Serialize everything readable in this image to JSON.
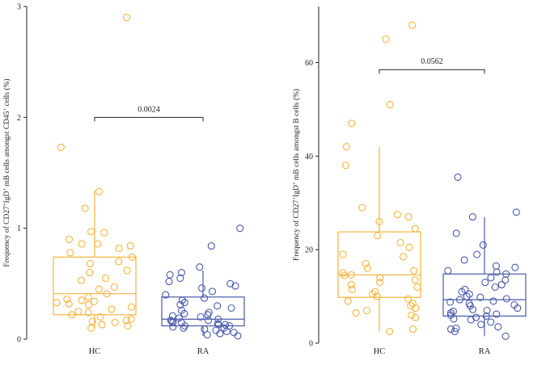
{
  "colors": {
    "hc": "#f5b43a",
    "ra": "#4a5aaa",
    "axis": "#222222"
  },
  "chart_data": [
    {
      "type": "box",
      "ylabel_parts": [
        "Frequency of CD27",
        "+",
        "IgD",
        "+",
        " mB cells amongst CD45",
        "+",
        " cells (%)"
      ],
      "ylim": [
        0,
        3
      ],
      "yticks": [
        "0",
        "1",
        "2",
        "3"
      ],
      "ytick_values": [
        0,
        1,
        2,
        3
      ],
      "categories": [
        "HC",
        "RA"
      ],
      "series": [
        {
          "name": "HC",
          "q1": 0.22,
          "median": 0.41,
          "q3": 0.74,
          "whisker_low": 0.1,
          "whisker_high": 1.34,
          "points": [
            2.9,
            1.73,
            1.33,
            1.18,
            0.97,
            0.96,
            0.9,
            0.86,
            0.86,
            0.84,
            0.82,
            0.78,
            0.74,
            0.7,
            0.68,
            0.62,
            0.6,
            0.55,
            0.53,
            0.47,
            0.45,
            0.41,
            0.38,
            0.36,
            0.35,
            0.34,
            0.33,
            0.32,
            0.31,
            0.29,
            0.27,
            0.25,
            0.24,
            0.22,
            0.2,
            0.18,
            0.17,
            0.16,
            0.15,
            0.13,
            0.12,
            0.1
          ]
        },
        {
          "name": "RA",
          "q1": 0.12,
          "median": 0.18,
          "q3": 0.38,
          "whisker_low": 0.03,
          "whisker_high": 0.62,
          "points": [
            1.0,
            0.84,
            0.65,
            0.6,
            0.58,
            0.55,
            0.52,
            0.5,
            0.48,
            0.46,
            0.43,
            0.4,
            0.37,
            0.35,
            0.33,
            0.31,
            0.3,
            0.28,
            0.26,
            0.24,
            0.23,
            0.22,
            0.21,
            0.2,
            0.19,
            0.18,
            0.17,
            0.17,
            0.16,
            0.15,
            0.15,
            0.14,
            0.13,
            0.13,
            0.12,
            0.12,
            0.11,
            0.1,
            0.1,
            0.09,
            0.08,
            0.07,
            0.06,
            0.05,
            0.04,
            0.03
          ]
        }
      ],
      "comparison": {
        "label": "0.0024",
        "value": 2.0
      }
    },
    {
      "type": "box",
      "ylabel_parts": [
        "Frequency of CD27",
        "+",
        "IgD",
        "+",
        " mB cells amongst B cells (%)"
      ],
      "ylim": [
        0,
        72
      ],
      "yticks": [
        "0",
        "20",
        "40",
        "60"
      ],
      "ytick_values": [
        0,
        20,
        40,
        60
      ],
      "categories": [
        "HC",
        "RA"
      ],
      "series": [
        {
          "name": "HC",
          "q1": 9.8,
          "median": 14.6,
          "q3": 23.8,
          "whisker_low": 2.5,
          "whisker_high": 42,
          "points": [
            68,
            65,
            51,
            47,
            42,
            38,
            29,
            27.5,
            27,
            26,
            24.5,
            23,
            21.5,
            20.5,
            19,
            18.5,
            17,
            16,
            15.5,
            15,
            14.6,
            14.5,
            14,
            13.5,
            13,
            12.5,
            12,
            11.5,
            11,
            10.5,
            10,
            9.5,
            9,
            8.5,
            8,
            7.5,
            7,
            6.5,
            6,
            5.5,
            3,
            2.5
          ]
        },
        {
          "name": "RA",
          "q1": 5.8,
          "median": 9.3,
          "q3": 14.8,
          "whisker_low": 1.5,
          "whisker_high": 27,
          "points": [
            35.5,
            28,
            27,
            23.5,
            21,
            19,
            17.8,
            16.5,
            16.2,
            15.5,
            15.2,
            14.8,
            14,
            13.5,
            13,
            12.5,
            12,
            11.5,
            11,
            10.5,
            10,
            9.8,
            9.5,
            9.3,
            9,
            8.8,
            8.5,
            8.2,
            8,
            7.5,
            7.2,
            7,
            6.8,
            6.5,
            6.2,
            6,
            5.8,
            5.5,
            5.2,
            5,
            4.5,
            4,
            3.5,
            3.2,
            3,
            2.5,
            1.5
          ]
        }
      ],
      "comparison": {
        "label": "0.0562",
        "value": 58.5
      }
    }
  ]
}
